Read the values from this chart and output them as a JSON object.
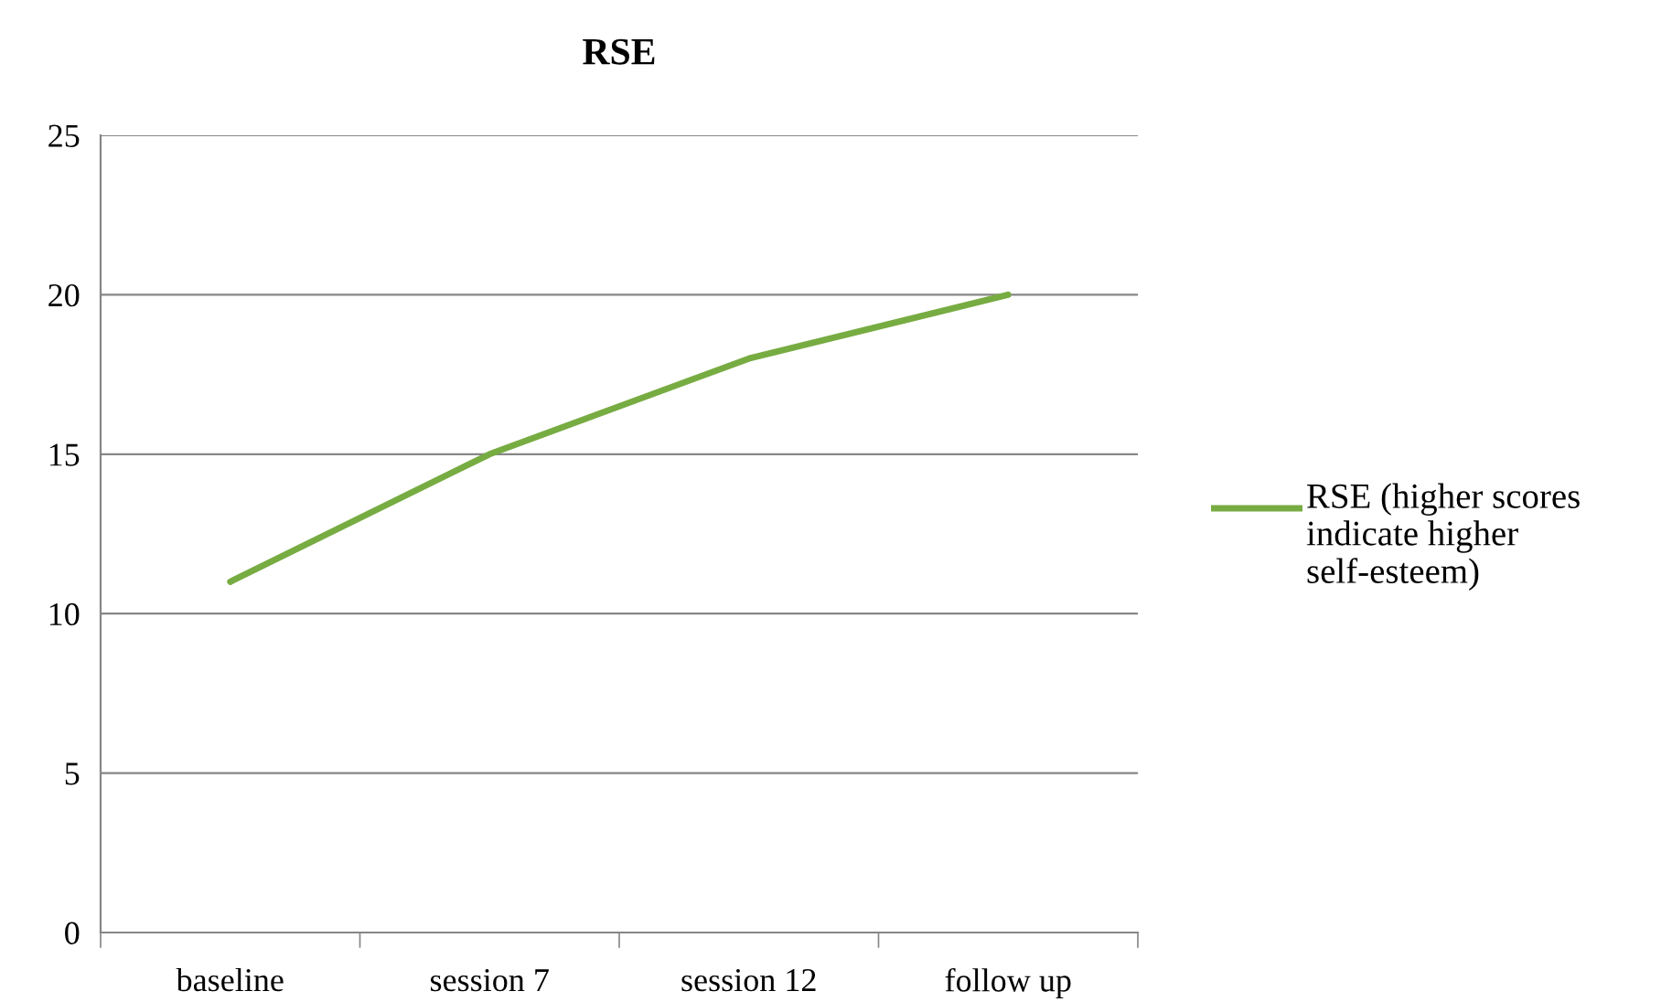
{
  "chart_data": {
    "type": "line",
    "title": "RSE",
    "categories": [
      "baseline",
      "session 7",
      "session 12",
      "follow up"
    ],
    "series": [
      {
        "name": "RSE (higher scores indicate higher self-esteem)",
        "color": "#77ac42",
        "values": [
          11,
          15,
          18,
          20
        ]
      }
    ],
    "ylim": [
      0,
      25
    ],
    "yticks": [
      0,
      5,
      10,
      15,
      20,
      25
    ],
    "grid": "y",
    "legend": "right",
    "marker": "none",
    "line_style": "solid"
  }
}
